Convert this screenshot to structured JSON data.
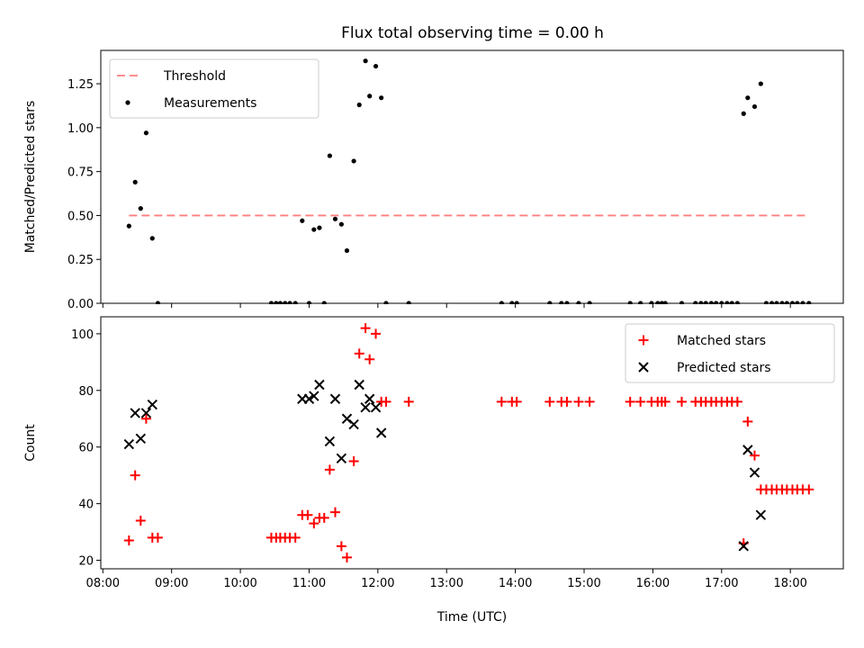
{
  "figure": {
    "title": "Flux total observing time = 0.00 h",
    "x_tick_labels": [
      "08:00",
      "09:00",
      "10:00",
      "11:00",
      "12:00",
      "13:00",
      "14:00",
      "15:00",
      "16:00",
      "17:00",
      "18:00"
    ]
  },
  "chart_data": [
    {
      "type": "scatter",
      "ylabel": "Matched/Predicted stars",
      "xlabel": "",
      "x_unit": "hours (UTC)",
      "xlim": [
        7.97,
        18.77
      ],
      "ylim": [
        0,
        1.44
      ],
      "yticks": [
        0.0,
        0.25,
        0.5,
        0.75,
        1.0,
        1.25
      ],
      "ytick_labels": [
        "0.00",
        "0.25",
        "0.50",
        "0.75",
        "1.00",
        "1.25"
      ],
      "legend_position": "upper-left",
      "series": [
        {
          "name": "Threshold",
          "kind": "line",
          "style": "dashed",
          "color": "#ff7f7f",
          "x": [
            8.38,
            18.27
          ],
          "y": [
            0.5,
            0.5
          ]
        },
        {
          "name": "Measurements",
          "kind": "dot",
          "color": "#000000",
          "x": [
            8.38,
            8.47,
            8.55,
            8.63,
            8.72,
            8.8,
            10.45,
            10.52,
            10.58,
            10.65,
            10.72,
            10.8,
            10.9,
            11.0,
            11.07,
            11.15,
            11.22,
            11.3,
            11.38,
            11.47,
            11.55,
            11.65,
            11.73,
            11.82,
            11.88,
            11.97,
            12.05,
            12.12,
            12.45,
            13.8,
            13.95,
            14.02,
            14.5,
            14.67,
            14.75,
            14.92,
            15.08,
            15.67,
            15.82,
            15.98,
            16.07,
            16.13,
            16.18,
            16.42,
            16.62,
            16.7,
            16.77,
            16.85,
            16.92,
            17.0,
            17.08,
            17.15,
            17.23,
            17.32,
            17.38,
            17.48,
            17.57,
            17.65,
            17.73,
            17.8,
            17.88,
            17.95,
            18.03,
            18.1,
            18.18,
            18.27
          ],
          "y": [
            0.44,
            0.69,
            0.54,
            0.97,
            0.37,
            0.0,
            0.0,
            0.0,
            0.0,
            0.0,
            0.0,
            0.0,
            0.47,
            0.0,
            0.42,
            0.43,
            0.0,
            0.84,
            0.48,
            0.45,
            0.3,
            0.81,
            1.13,
            1.38,
            1.18,
            1.35,
            1.17,
            0.0,
            0.0,
            0.0,
            0.0,
            0.0,
            0.0,
            0.0,
            0.0,
            0.0,
            0.0,
            0.0,
            0.0,
            0.0,
            0.0,
            0.0,
            0.0,
            0.0,
            0.0,
            0.0,
            0.0,
            0.0,
            0.0,
            0.0,
            0.0,
            0.0,
            0.0,
            1.08,
            1.17,
            1.12,
            1.25,
            0.0,
            0.0,
            0.0,
            0.0,
            0.0,
            0.0,
            0.0,
            0.0,
            0.0
          ]
        }
      ]
    },
    {
      "type": "scatter",
      "ylabel": "Count",
      "xlabel": "Time (UTC)",
      "x_unit": "hours (UTC)",
      "xlim": [
        7.97,
        18.77
      ],
      "ylim": [
        17,
        106
      ],
      "yticks": [
        20,
        40,
        60,
        80,
        100
      ],
      "ytick_labels": [
        "20",
        "40",
        "60",
        "80",
        "100"
      ],
      "legend_position": "upper-right",
      "series": [
        {
          "name": "Matched stars",
          "marker": "plus",
          "color": "#ff0000",
          "x": [
            8.38,
            8.47,
            8.55,
            8.63,
            8.72,
            8.8,
            10.45,
            10.52,
            10.58,
            10.65,
            10.72,
            10.8,
            10.9,
            10.98,
            11.07,
            11.15,
            11.22,
            11.3,
            11.38,
            11.47,
            11.55,
            11.65,
            11.73,
            11.82,
            11.88,
            11.97,
            12.05,
            12.12,
            12.45,
            13.8,
            13.95,
            14.02,
            14.5,
            14.67,
            14.75,
            14.92,
            15.08,
            15.67,
            15.82,
            15.98,
            16.07,
            16.13,
            16.18,
            16.42,
            16.62,
            16.7,
            16.77,
            16.85,
            16.92,
            17.0,
            17.08,
            17.15,
            17.23,
            17.32,
            17.38,
            17.48,
            17.57,
            17.65,
            17.73,
            17.8,
            17.88,
            17.95,
            18.03,
            18.1,
            18.18,
            18.27
          ],
          "y": [
            27,
            50,
            34,
            70,
            28,
            28,
            28,
            28,
            28,
            28,
            28,
            28,
            36,
            36,
            33,
            35,
            35,
            52,
            37,
            25,
            21,
            55,
            93,
            102,
            91,
            100,
            76,
            76,
            76,
            76,
            76,
            76,
            76,
            76,
            76,
            76,
            76,
            76,
            76,
            76,
            76,
            76,
            76,
            76,
            76,
            76,
            76,
            76,
            76,
            76,
            76,
            76,
            76,
            26,
            69,
            57,
            45,
            45,
            45,
            45,
            45,
            45,
            45,
            45,
            45,
            45
          ]
        },
        {
          "name": "Predicted stars",
          "marker": "x",
          "color": "#000000",
          "x": [
            8.38,
            8.47,
            8.55,
            8.63,
            8.72,
            10.9,
            11.0,
            11.07,
            11.15,
            11.3,
            11.38,
            11.47,
            11.55,
            11.65,
            11.73,
            11.82,
            11.88,
            11.97,
            12.05,
            17.32,
            17.38,
            17.48,
            17.57
          ],
          "y": [
            61,
            72,
            63,
            72,
            75,
            77,
            77,
            78,
            82,
            62,
            77,
            56,
            70,
            68,
            82,
            74,
            77,
            74,
            65,
            25,
            59,
            51,
            36
          ]
        }
      ]
    }
  ]
}
